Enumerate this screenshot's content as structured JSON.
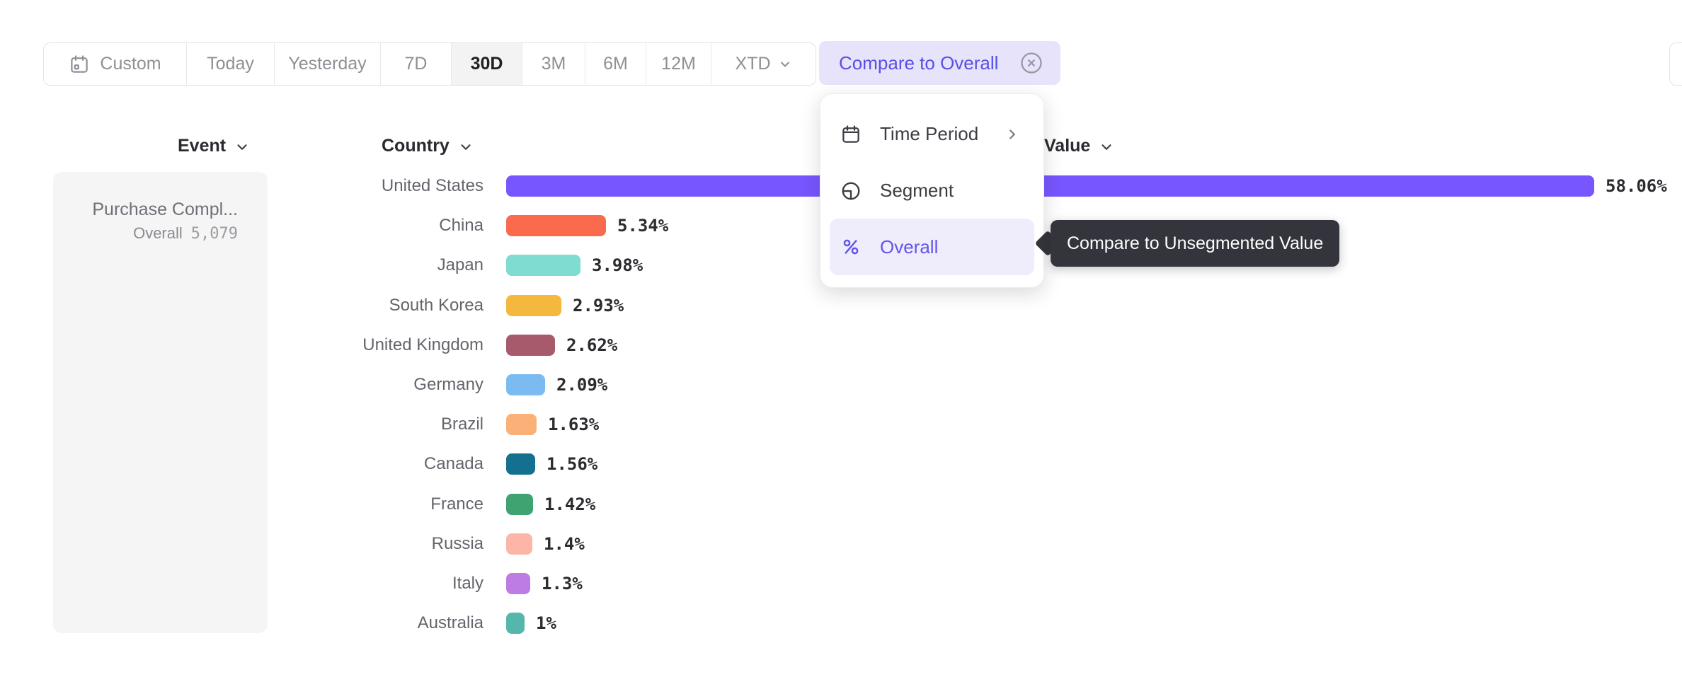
{
  "toolbar": {
    "date_ranges": [
      {
        "label": "Custom",
        "icon": "calendar",
        "selected": false
      },
      {
        "label": "Today",
        "selected": false
      },
      {
        "label": "Yesterday",
        "selected": false
      },
      {
        "label": "7D",
        "selected": false
      },
      {
        "label": "30D",
        "selected": true
      },
      {
        "label": "3M",
        "selected": false
      },
      {
        "label": "6M",
        "selected": false
      },
      {
        "label": "12M",
        "selected": false
      },
      {
        "label": "XTD",
        "chevron": true,
        "selected": false
      }
    ],
    "compare_chip": {
      "label": "Compare to Overall"
    }
  },
  "columns": {
    "event": "Event",
    "country": "Country",
    "value": "Value"
  },
  "event_cell": {
    "title": "Purchase Compl...",
    "overall_label": "Overall",
    "overall_value": "5,079"
  },
  "menu": {
    "items": [
      {
        "label": "Time Period",
        "icon": "calendar",
        "submenu": true,
        "active": false
      },
      {
        "label": "Segment",
        "icon": "segment",
        "submenu": false,
        "active": false
      },
      {
        "label": "Overall",
        "icon": "percent",
        "submenu": false,
        "active": true
      }
    ]
  },
  "tooltip": {
    "text": "Compare to Unsegmented Value"
  },
  "chart_data": {
    "type": "bar",
    "orientation": "horizontal",
    "categories": [
      "United States",
      "China",
      "Japan",
      "South Korea",
      "United Kingdom",
      "Germany",
      "Brazil",
      "Canada",
      "France",
      "Russia",
      "Italy",
      "Australia"
    ],
    "values": [
      58.06,
      5.34,
      3.98,
      2.93,
      2.62,
      2.09,
      1.63,
      1.56,
      1.42,
      1.4,
      1.3,
      1
    ],
    "value_labels": [
      "58.06%",
      "5.34%",
      "3.98%",
      "2.93%",
      "2.62%",
      "2.09%",
      "1.63%",
      "1.56%",
      "1.42%",
      "1.4%",
      "1.3%",
      "1%"
    ],
    "colors": [
      "#7856FF",
      "#FA6B4E",
      "#7EDCD1",
      "#F4B83F",
      "#A65A6B",
      "#7CBBF2",
      "#FBB077",
      "#14708F",
      "#3EA271",
      "#FCB5A7",
      "#BD7CE2",
      "#55B7AB"
    ],
    "xlim": [
      0,
      58.06
    ],
    "title": "",
    "xlabel": "",
    "ylabel": "Country",
    "grid": false,
    "legend": false
  },
  "accent_color": "#7856FF",
  "highlight_bg": "#EFECFC"
}
